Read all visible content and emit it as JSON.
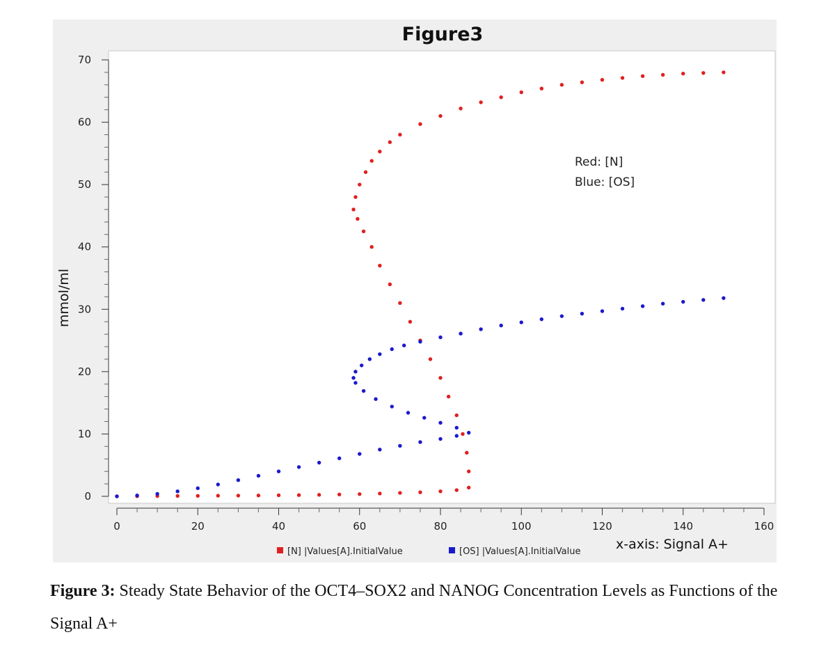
{
  "chart_data": {
    "type": "scatter",
    "title": "Figure3",
    "xlabel": "x-axis: Signal A+",
    "ylabel": "mmol/ml",
    "xlim": [
      0,
      160
    ],
    "ylim": [
      0,
      70
    ],
    "xticks": [
      0,
      20,
      40,
      60,
      80,
      100,
      120,
      140,
      160
    ],
    "yticks": [
      0,
      10,
      20,
      30,
      40,
      50,
      60,
      70
    ],
    "grid": false,
    "legend_position": "bottom",
    "annotations": [
      "Red: [N]",
      "Blue: [OS]"
    ],
    "series": [
      {
        "name": "[N] |Values[A].InitialValue",
        "color": "#e02020",
        "points": [
          [
            0,
            0
          ],
          [
            5,
            0.02
          ],
          [
            10,
            0.04
          ],
          [
            15,
            0.06
          ],
          [
            20,
            0.08
          ],
          [
            25,
            0.1
          ],
          [
            30,
            0.12
          ],
          [
            35,
            0.14
          ],
          [
            40,
            0.17
          ],
          [
            45,
            0.2
          ],
          [
            50,
            0.24
          ],
          [
            55,
            0.3
          ],
          [
            60,
            0.36
          ],
          [
            65,
            0.45
          ],
          [
            70,
            0.55
          ],
          [
            75,
            0.65
          ],
          [
            80,
            0.8
          ],
          [
            84,
            1.0
          ],
          [
            87,
            1.4
          ],
          [
            87,
            4
          ],
          [
            86.5,
            7
          ],
          [
            85.5,
            10
          ],
          [
            84,
            13
          ],
          [
            82,
            16
          ],
          [
            80,
            19
          ],
          [
            77.5,
            22
          ],
          [
            75,
            25
          ],
          [
            72.5,
            28
          ],
          [
            70,
            31
          ],
          [
            67.5,
            34
          ],
          [
            65,
            37
          ],
          [
            63,
            40
          ],
          [
            61,
            42.5
          ],
          [
            59.5,
            44.5
          ],
          [
            58.5,
            46
          ],
          [
            59,
            48
          ],
          [
            60,
            50
          ],
          [
            61.5,
            52
          ],
          [
            63,
            53.8
          ],
          [
            65,
            55.3
          ],
          [
            67.5,
            56.8
          ],
          [
            70,
            58
          ],
          [
            75,
            59.7
          ],
          [
            80,
            61
          ],
          [
            85,
            62.2
          ],
          [
            90,
            63.2
          ],
          [
            95,
            64
          ],
          [
            100,
            64.8
          ],
          [
            105,
            65.4
          ],
          [
            110,
            66
          ],
          [
            115,
            66.4
          ],
          [
            120,
            66.8
          ],
          [
            125,
            67.1
          ],
          [
            130,
            67.4
          ],
          [
            135,
            67.6
          ],
          [
            140,
            67.8
          ],
          [
            145,
            67.9
          ],
          [
            150,
            68
          ]
        ]
      },
      {
        "name": "[OS] |Values[A].InitialValue",
        "color": "#1a1acc",
        "points": [
          [
            0,
            0
          ],
          [
            5,
            0.15
          ],
          [
            10,
            0.4
          ],
          [
            15,
            0.8
          ],
          [
            20,
            1.3
          ],
          [
            25,
            1.9
          ],
          [
            30,
            2.6
          ],
          [
            35,
            3.3
          ],
          [
            40,
            4.0
          ],
          [
            45,
            4.7
          ],
          [
            50,
            5.4
          ],
          [
            55,
            6.1
          ],
          [
            60,
            6.8
          ],
          [
            65,
            7.5
          ],
          [
            70,
            8.1
          ],
          [
            75,
            8.7
          ],
          [
            80,
            9.2
          ],
          [
            84,
            9.7
          ],
          [
            87,
            10.2
          ],
          [
            84,
            11.0
          ],
          [
            80,
            11.8
          ],
          [
            76,
            12.6
          ],
          [
            72,
            13.4
          ],
          [
            68,
            14.4
          ],
          [
            64,
            15.6
          ],
          [
            61,
            16.9
          ],
          [
            59,
            18.2
          ],
          [
            58.5,
            19
          ],
          [
            59,
            20
          ],
          [
            60.5,
            21
          ],
          [
            62.5,
            22
          ],
          [
            65,
            22.8
          ],
          [
            68,
            23.6
          ],
          [
            71,
            24.2
          ],
          [
            75,
            24.8
          ],
          [
            80,
            25.5
          ],
          [
            85,
            26.1
          ],
          [
            90,
            26.8
          ],
          [
            95,
            27.4
          ],
          [
            100,
            27.9
          ],
          [
            105,
            28.4
          ],
          [
            110,
            28.9
          ],
          [
            115,
            29.3
          ],
          [
            120,
            29.7
          ],
          [
            125,
            30.1
          ],
          [
            130,
            30.5
          ],
          [
            135,
            30.9
          ],
          [
            140,
            31.2
          ],
          [
            145,
            31.5
          ],
          [
            150,
            31.8
          ]
        ]
      }
    ]
  },
  "caption": {
    "label": "Figure 3:",
    "text": " Steady State Behavior of the OCT4–SOX2 and NANOG Concentration Levels as Functions of the Signal A+"
  }
}
